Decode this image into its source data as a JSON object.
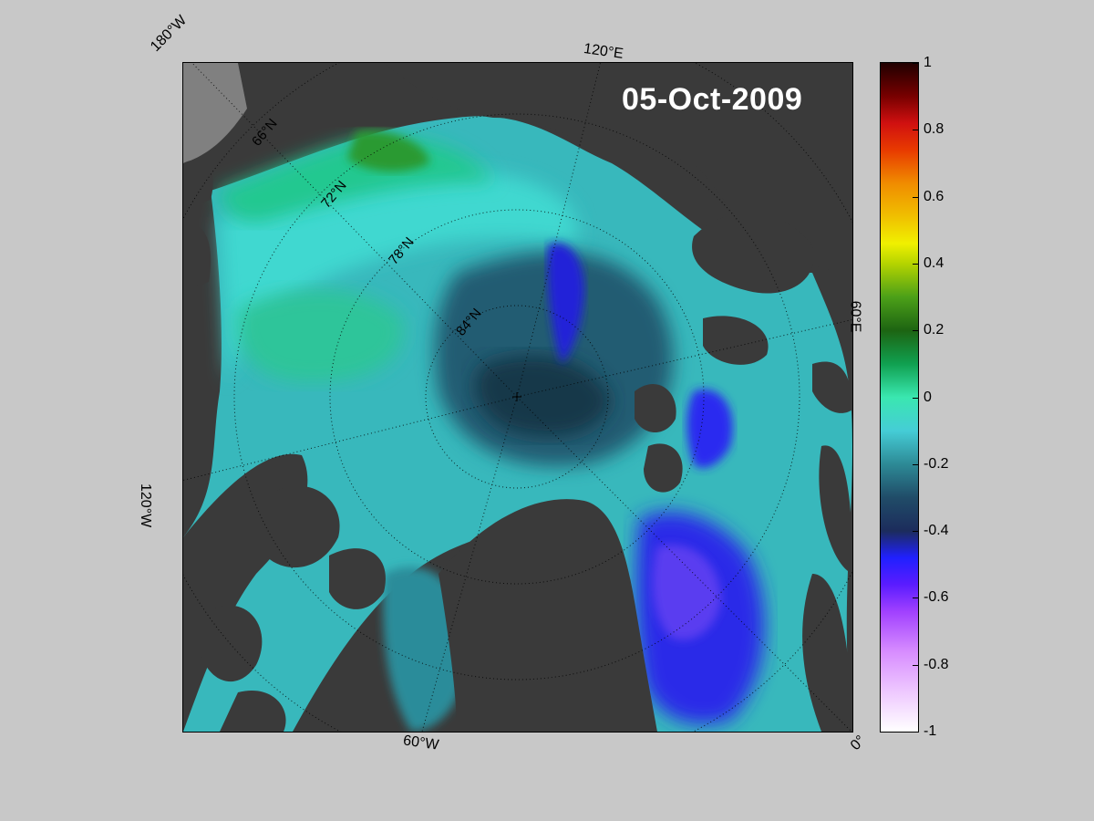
{
  "date": "05-Oct-2009",
  "longitude_labels": [
    "180°W",
    "120°E",
    "60°E",
    "0°",
    "60°W",
    "120°W"
  ],
  "latitude_labels": [
    "66°N",
    "72°N",
    "78°N",
    "84°N"
  ],
  "colorbar": {
    "ticks": [
      "1",
      "0.8",
      "0.6",
      "0.4",
      "0.2",
      "0",
      "-0.2",
      "-0.4",
      "-0.6",
      "-0.8",
      "-1"
    ],
    "min": -1,
    "max": 1
  }
}
